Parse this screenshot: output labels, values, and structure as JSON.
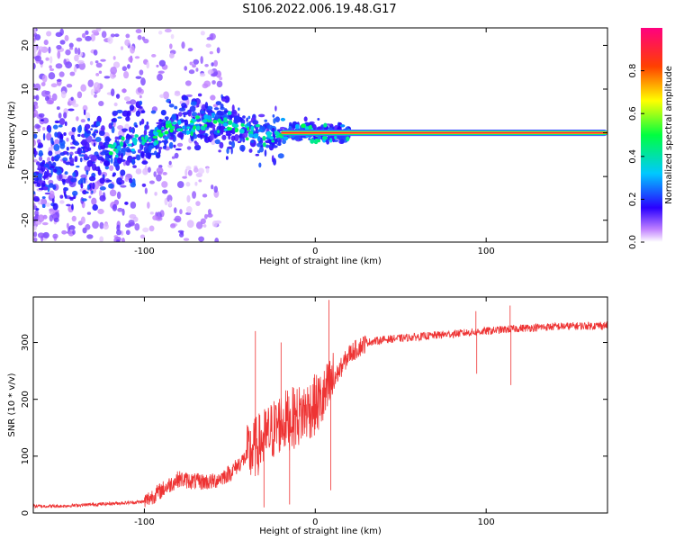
{
  "figure": {
    "title": "S106.2022.006.19.48.G17"
  },
  "colors": {
    "snr_line": "#ee3333",
    "axis": "#000000",
    "background": "#ffffff"
  },
  "chart_data": [
    {
      "type": "heatmap",
      "xlabel": "Height of straight line (km)",
      "ylabel": "Frequency (Hz)",
      "xlim": [
        -165,
        171
      ],
      "ylim": [
        -25,
        24
      ],
      "xticks": [
        -100,
        0,
        100
      ],
      "yticks": [
        -20,
        -10,
        0,
        10,
        20
      ],
      "colorbar": {
        "label": "Normalized spectral amplitude",
        "range": [
          0,
          1
        ],
        "ticks": [
          0.0,
          0.2,
          0.4,
          0.6,
          0.8
        ],
        "colormap": "rainbow"
      },
      "ridge": [
        {
          "x": -120,
          "y": -4
        },
        {
          "x": -110,
          "y": -3
        },
        {
          "x": -100,
          "y": -2
        },
        {
          "x": -90,
          "y": 0
        },
        {
          "x": -80,
          "y": 2
        },
        {
          "x": -70,
          "y": 2
        },
        {
          "x": -60,
          "y": 3
        },
        {
          "x": -50,
          "y": 2
        },
        {
          "x": -40,
          "y": 1
        },
        {
          "x": -30,
          "y": -1
        },
        {
          "x": -20,
          "y": 0
        },
        {
          "x": -10,
          "y": 0.5
        },
        {
          "x": 0,
          "y": 0
        },
        {
          "x": 20,
          "y": 0
        },
        {
          "x": 60,
          "y": 0
        },
        {
          "x": 100,
          "y": 0
        },
        {
          "x": 140,
          "y": 0
        },
        {
          "x": 171,
          "y": 0
        }
      ],
      "steady_band": {
        "x_start": -20,
        "x_end": 171,
        "frequency": 0
      }
    },
    {
      "type": "line",
      "xlabel": "Height of straight line (km)",
      "ylabel": "SNR (10 * v/v)",
      "xlim": [
        -165,
        171
      ],
      "ylim": [
        0,
        380
      ],
      "xticks": [
        -100,
        0,
        100
      ],
      "yticks": [
        0,
        100,
        200,
        300
      ],
      "series": [
        {
          "color": "#ee3333",
          "points": [
            {
              "x": -165,
              "y": 12
            },
            {
              "x": -150,
              "y": 12
            },
            {
              "x": -130,
              "y": 15
            },
            {
              "x": -110,
              "y": 18
            },
            {
              "x": -100,
              "y": 20
            },
            {
              "x": -90,
              "y": 40
            },
            {
              "x": -80,
              "y": 60
            },
            {
              "x": -70,
              "y": 55
            },
            {
              "x": -60,
              "y": 55
            },
            {
              "x": -50,
              "y": 70
            },
            {
              "x": -40,
              "y": 100
            },
            {
              "x": -30,
              "y": 130
            },
            {
              "x": -20,
              "y": 160
            },
            {
              "x": -10,
              "y": 170
            },
            {
              "x": 0,
              "y": 190
            },
            {
              "x": 5,
              "y": 200
            },
            {
              "x": 10,
              "y": 230
            },
            {
              "x": 20,
              "y": 280
            },
            {
              "x": 30,
              "y": 300
            },
            {
              "x": 40,
              "y": 305
            },
            {
              "x": 60,
              "y": 310
            },
            {
              "x": 80,
              "y": 315
            },
            {
              "x": 100,
              "y": 320
            },
            {
              "x": 120,
              "y": 325
            },
            {
              "x": 140,
              "y": 328
            },
            {
              "x": 171,
              "y": 330
            }
          ],
          "spikes": [
            {
              "x": -35,
              "y": 320
            },
            {
              "x": -30,
              "y": 10
            },
            {
              "x": -20,
              "y": 300
            },
            {
              "x": -15,
              "y": 15
            },
            {
              "x": 8,
              "y": 375
            },
            {
              "x": 9,
              "y": 40
            },
            {
              "x": 94,
              "y": 355
            },
            {
              "x": 94.5,
              "y": 245
            },
            {
              "x": 114,
              "y": 365
            },
            {
              "x": 114.5,
              "y": 225
            }
          ]
        }
      ]
    }
  ]
}
